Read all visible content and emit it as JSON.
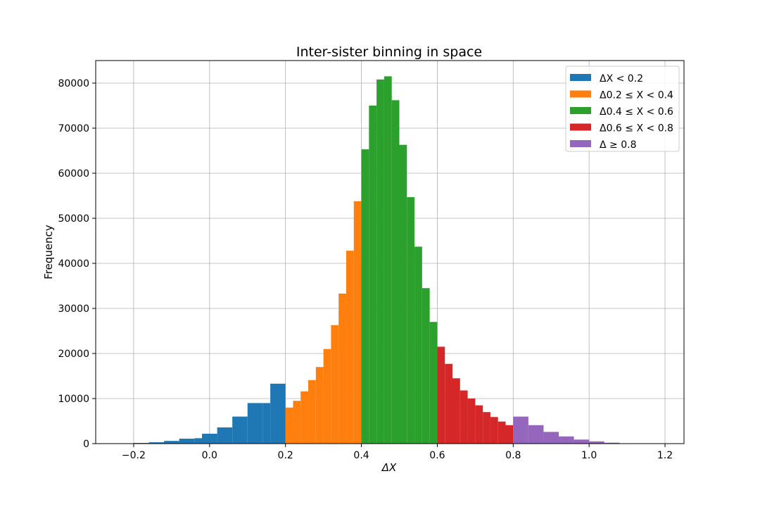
{
  "chart_data": {
    "type": "bar",
    "title": "Inter-sister binning in space",
    "xlabel": "ΔX",
    "ylabel": "Frequency",
    "xlim": [
      -0.3,
      1.25
    ],
    "ylim": [
      0,
      85000
    ],
    "grid": true,
    "legend_position": "top-right",
    "xticks": [
      "−0.2",
      "0.0",
      "0.2",
      "0.4",
      "0.6",
      "0.8",
      "1.0",
      "1.2"
    ],
    "xtick_values": [
      -0.2,
      0.0,
      0.2,
      0.4,
      0.6,
      0.8,
      1.0,
      1.2
    ],
    "yticks": [
      "0",
      "10000",
      "20000",
      "30000",
      "40000",
      "50000",
      "60000",
      "70000",
      "80000"
    ],
    "ytick_values": [
      0,
      10000,
      20000,
      30000,
      40000,
      50000,
      60000,
      70000,
      80000
    ],
    "series": [
      {
        "name": "ΔX < 0.2",
        "color": "#1f77b4",
        "bins": [
          [
            -0.2,
            -0.16,
            150
          ],
          [
            -0.16,
            -0.12,
            300
          ],
          [
            -0.12,
            -0.08,
            600
          ],
          [
            -0.08,
            -0.04,
            1100
          ],
          [
            -0.04,
            0.0,
            1200
          ],
          [
            -0.02,
            0.02,
            2200
          ],
          [
            0.02,
            0.06,
            3600
          ],
          [
            0.06,
            0.1,
            6000
          ],
          [
            0.1,
            0.14,
            9000
          ],
          [
            0.14,
            0.16,
            9000
          ],
          [
            0.16,
            0.2,
            13300
          ]
        ]
      },
      {
        "name": "Δ0.2 ≤ X < 0.4",
        "color": "#ff7f0e",
        "bins": [
          [
            0.2,
            0.22,
            8000
          ],
          [
            0.22,
            0.24,
            9500
          ],
          [
            0.24,
            0.26,
            11600
          ],
          [
            0.26,
            0.28,
            14100
          ],
          [
            0.28,
            0.3,
            17000
          ],
          [
            0.3,
            0.32,
            21000
          ],
          [
            0.32,
            0.34,
            26300
          ],
          [
            0.34,
            0.36,
            33300
          ],
          [
            0.36,
            0.38,
            42800
          ],
          [
            0.38,
            0.4,
            53800
          ]
        ]
      },
      {
        "name": "Δ0.4 ≤ X < 0.6",
        "color": "#2ca02c",
        "bins": [
          [
            0.4,
            0.42,
            65300
          ],
          [
            0.42,
            0.44,
            75000
          ],
          [
            0.44,
            0.46,
            80800
          ],
          [
            0.46,
            0.48,
            81500
          ],
          [
            0.48,
            0.5,
            76200
          ],
          [
            0.5,
            0.52,
            66300
          ],
          [
            0.52,
            0.54,
            54700
          ],
          [
            0.54,
            0.56,
            43700
          ],
          [
            0.56,
            0.58,
            34500
          ],
          [
            0.58,
            0.6,
            27000
          ]
        ]
      },
      {
        "name": "Δ0.6 ≤ X < 0.8",
        "color": "#d62728",
        "bins": [
          [
            0.6,
            0.62,
            21500
          ],
          [
            0.62,
            0.64,
            17700
          ],
          [
            0.64,
            0.66,
            14500
          ],
          [
            0.66,
            0.68,
            11800
          ],
          [
            0.68,
            0.7,
            10000
          ],
          [
            0.7,
            0.72,
            8500
          ],
          [
            0.72,
            0.74,
            7000
          ],
          [
            0.74,
            0.76,
            5900
          ],
          [
            0.76,
            0.78,
            4900
          ],
          [
            0.78,
            0.8,
            4100
          ]
        ]
      },
      {
        "name": "Δ ≥ 0.8",
        "color": "#9467bd",
        "bins": [
          [
            0.8,
            0.84,
            6000
          ],
          [
            0.84,
            0.88,
            4100
          ],
          [
            0.88,
            0.92,
            2600
          ],
          [
            0.92,
            0.96,
            1600
          ],
          [
            0.96,
            1.0,
            900
          ],
          [
            1.0,
            1.04,
            500
          ],
          [
            1.04,
            1.08,
            200
          ],
          [
            1.08,
            1.12,
            50
          ]
        ]
      }
    ]
  }
}
